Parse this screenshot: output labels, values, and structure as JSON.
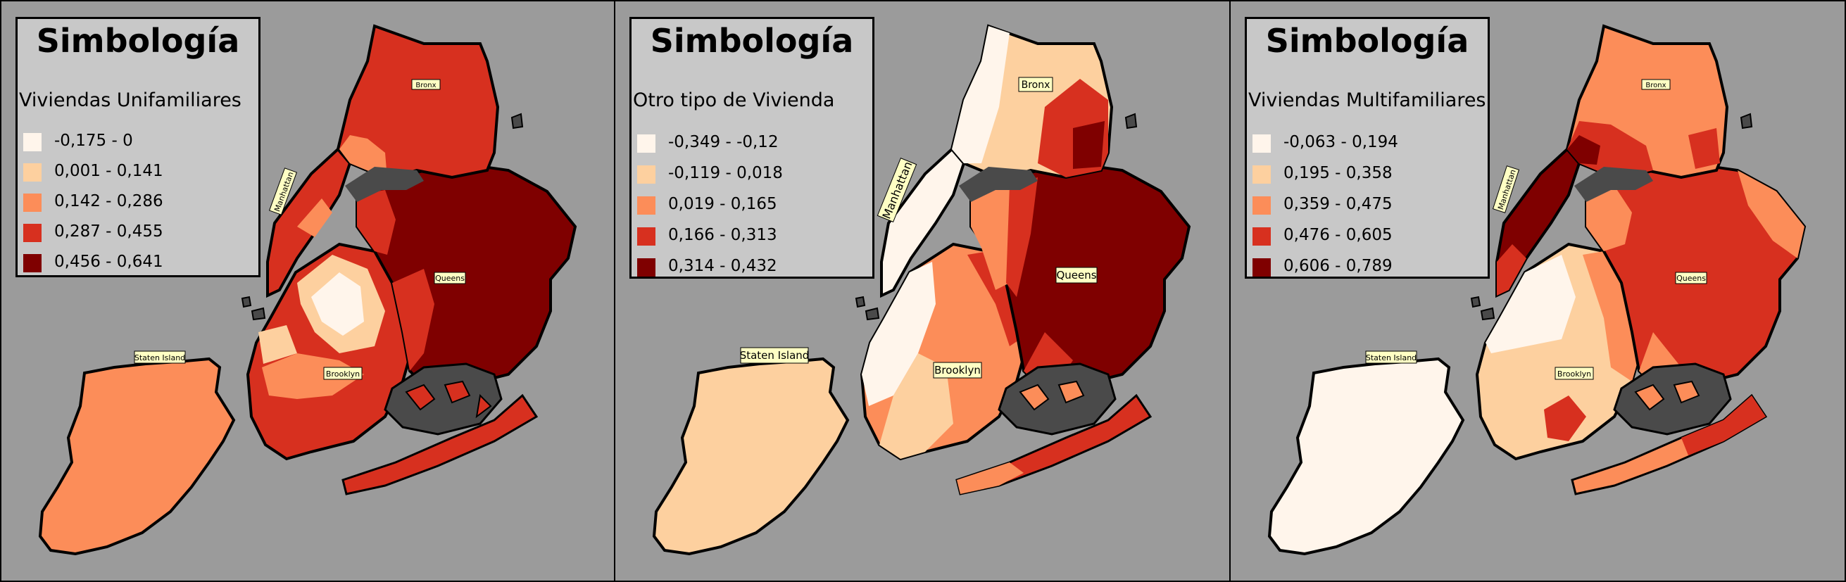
{
  "panels": [
    {
      "legend_title": "Simbología",
      "subtitle": "Viviendas Unifamiliares",
      "legend": [
        {
          "label": "-0,175 - 0",
          "color": "#fff5eb"
        },
        {
          "label": "0,001 - 0,141",
          "color": "#fdd09f"
        },
        {
          "label": "0,142 - 0,286",
          "color": "#fc8d59"
        },
        {
          "label": "0,287 - 0,455",
          "color": "#d7301f"
        },
        {
          "label": "0,456 - 0,641",
          "color": "#7f0000"
        }
      ],
      "boroughs": {
        "bronx": "Bronx",
        "manhattan": "Manhattan",
        "queens": "Queens",
        "brooklyn": "Brooklyn",
        "staten": "Staten Island"
      }
    },
    {
      "legend_title": "Simbología",
      "subtitle": "Otro tipo de Vivienda",
      "legend": [
        {
          "label": "-0,349 - -0,12",
          "color": "#fff5eb"
        },
        {
          "label": "-0,119 - 0,018",
          "color": "#fdd09f"
        },
        {
          "label": "0,019 - 0,165",
          "color": "#fc8d59"
        },
        {
          "label": "0,166 - 0,313",
          "color": "#d7301f"
        },
        {
          "label": "0,314 - 0,432",
          "color": "#7f0000"
        }
      ],
      "boroughs": {
        "bronx": "Bronx",
        "manhattan": "Manhattan",
        "queens": "Queens",
        "brooklyn": "Brooklyn",
        "staten": "Staten Island"
      }
    },
    {
      "legend_title": "Simbología",
      "subtitle": "Viviendas Multifamiliares",
      "legend": [
        {
          "label": "-0,063 - 0,194",
          "color": "#fff5eb"
        },
        {
          "label": "0,195 - 0,358",
          "color": "#fdd09f"
        },
        {
          "label": "0,359 - 0,475",
          "color": "#fc8d59"
        },
        {
          "label": "0,476 - 0,605",
          "color": "#d7301f"
        },
        {
          "label": "0,606 - 0,789",
          "color": "#7f0000"
        }
      ],
      "boroughs": {
        "bronx": "Bronx",
        "manhattan": "Manhattan",
        "queens": "Queens",
        "brooklyn": "Brooklyn",
        "staten": "Staten Island"
      }
    }
  ]
}
